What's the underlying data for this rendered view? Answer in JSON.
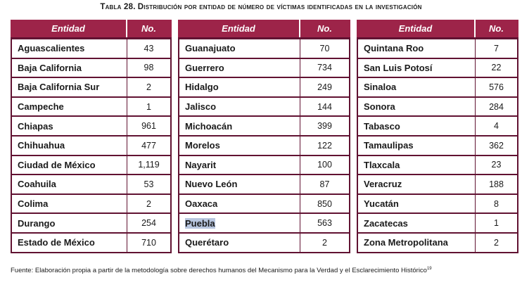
{
  "title": {
    "prefix": "Tabla 28.",
    "text": "Distribución por entidad de número de víctimas identificadas en la investigación"
  },
  "headers": {
    "entity": "Entidad",
    "count": "No."
  },
  "columns": [
    [
      {
        "name": "Aguascalientes",
        "count": "43"
      },
      {
        "name": "Baja California",
        "count": "98"
      },
      {
        "name": "Baja California Sur",
        "count": "2"
      },
      {
        "name": "Campeche",
        "count": "1"
      },
      {
        "name": "Chiapas",
        "count": "961"
      },
      {
        "name": "Chihuahua",
        "count": "477"
      },
      {
        "name": "Ciudad de México",
        "count": "1,119"
      },
      {
        "name": "Coahuila",
        "count": "53"
      },
      {
        "name": "Colima",
        "count": "2"
      },
      {
        "name": "Durango",
        "count": "254"
      },
      {
        "name": "Estado de México",
        "count": "710"
      }
    ],
    [
      {
        "name": "Guanajuato",
        "count": "70"
      },
      {
        "name": "Guerrero",
        "count": "734"
      },
      {
        "name": "Hidalgo",
        "count": "249"
      },
      {
        "name": "Jalisco",
        "count": "144"
      },
      {
        "name": "Michoacán",
        "count": "399"
      },
      {
        "name": "Morelos",
        "count": "122"
      },
      {
        "name": "Nayarit",
        "count": "100"
      },
      {
        "name": "Nuevo León",
        "count": "87"
      },
      {
        "name": "Oaxaca",
        "count": "850"
      },
      {
        "name": "Puebla",
        "count": "563",
        "highlighted": true
      },
      {
        "name": "Querétaro",
        "count": "2"
      }
    ],
    [
      {
        "name": "Quintana Roo",
        "count": "7"
      },
      {
        "name": "San Luis Potosí",
        "count": "22"
      },
      {
        "name": "Sinaloa",
        "count": "576"
      },
      {
        "name": "Sonora",
        "count": "284"
      },
      {
        "name": "Tabasco",
        "count": "4"
      },
      {
        "name": "Tamaulipas",
        "count": "362"
      },
      {
        "name": "Tlaxcala",
        "count": "23"
      },
      {
        "name": "Veracruz",
        "count": "188"
      },
      {
        "name": "Yucatán",
        "count": "8"
      },
      {
        "name": "Zacatecas",
        "count": "1"
      },
      {
        "name": "Zona Metropolitana",
        "count": "2"
      }
    ]
  ],
  "footer": {
    "text": "Fuente: Elaboración propia a partir de la metodología sobre derechos humanos del Mecanismo para la Verdad y el Esclarecimiento Histórico",
    "footnote": "19"
  },
  "colors": {
    "header_bg": "#9d2449",
    "border": "#611232",
    "selection": "#b8c6df"
  }
}
